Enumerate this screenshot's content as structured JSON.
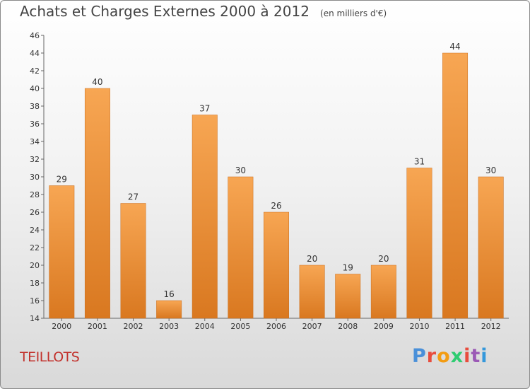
{
  "header": {
    "title": "Achats et Charges Externes 2000 à 2012",
    "unit": "(en milliers d'€)"
  },
  "commune": "TEILLOTS",
  "brand": {
    "text": "Proxiti",
    "colors": [
      "#4a90d9",
      "#e84c3d",
      "#f39c12",
      "#2ecc71",
      "#e84c3d",
      "#9b59b6",
      "#3498db"
    ]
  },
  "colors": {
    "bar_top": "#f7a653",
    "bar_bottom": "#d97820",
    "label": "#333333",
    "title": "#444444",
    "commune": "#c2312c"
  },
  "chart_data": {
    "type": "bar",
    "categories": [
      "2000",
      "2001",
      "2002",
      "2003",
      "2004",
      "2005",
      "2006",
      "2007",
      "2008",
      "2009",
      "2010",
      "2011",
      "2012"
    ],
    "values": [
      29,
      40,
      27,
      16,
      37,
      30,
      26,
      20,
      19,
      20,
      31,
      44,
      30
    ],
    "ylim": [
      14,
      46
    ],
    "yticks": [
      14,
      16,
      18,
      20,
      22,
      24,
      26,
      28,
      30,
      32,
      34,
      36,
      38,
      40,
      42,
      44,
      46
    ],
    "grid": false
  }
}
